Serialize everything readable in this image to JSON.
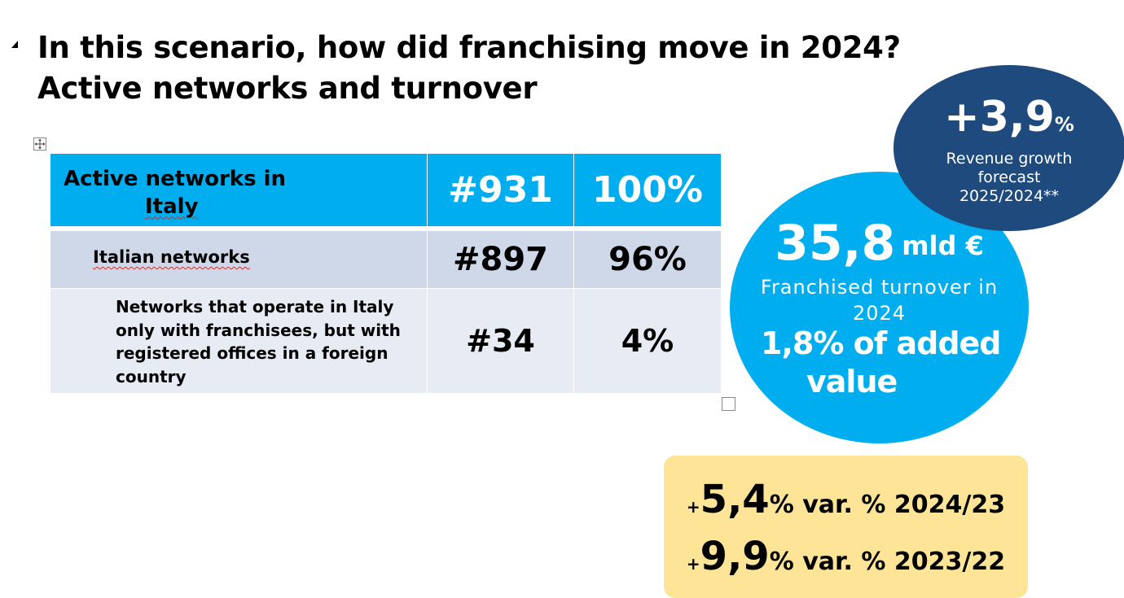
{
  "slide": {
    "title_line1": "In this scenario, how did franchising move in 2024?",
    "title_line2": "Active networks and turnover"
  },
  "table": {
    "rows": [
      {
        "label_line1": "Active networks in",
        "label_line2": "Italy",
        "count": "#931",
        "share": "100%"
      },
      {
        "label": "Italian networks",
        "count": "#897",
        "share": "96%"
      },
      {
        "label_lines": [
          "Networks that operate in Italy",
          "only with franchisees, but with",
          "registered offices in a foreign",
          "country"
        ],
        "count": "#34",
        "share": "4%"
      }
    ]
  },
  "turnover_bubble": {
    "value": "35,8",
    "unit": "mld €",
    "caption": "Franchised turnover in 2024",
    "added_value_line1": "1,8% of added",
    "added_value_line2": "value"
  },
  "forecast_bubble": {
    "value": "+3,9",
    "percent": "%",
    "caption_line1": "Revenue growth",
    "caption_line2": "forecast",
    "caption_line3": "2025/2024**"
  },
  "variation_box": {
    "line1": {
      "plus": "+",
      "value": "5,4",
      "rest": "% var. % 2024/23"
    },
    "line2": {
      "plus": "+",
      "value": "9,9",
      "rest": "% var. % 2023/22"
    }
  },
  "colors": {
    "header_blue": "#00adef",
    "row_italian": "#cfd8e8",
    "row_foreign": "#e7ebf3",
    "forecast_navy": "#1f4a7d",
    "variation_yellow": "#fde496"
  }
}
